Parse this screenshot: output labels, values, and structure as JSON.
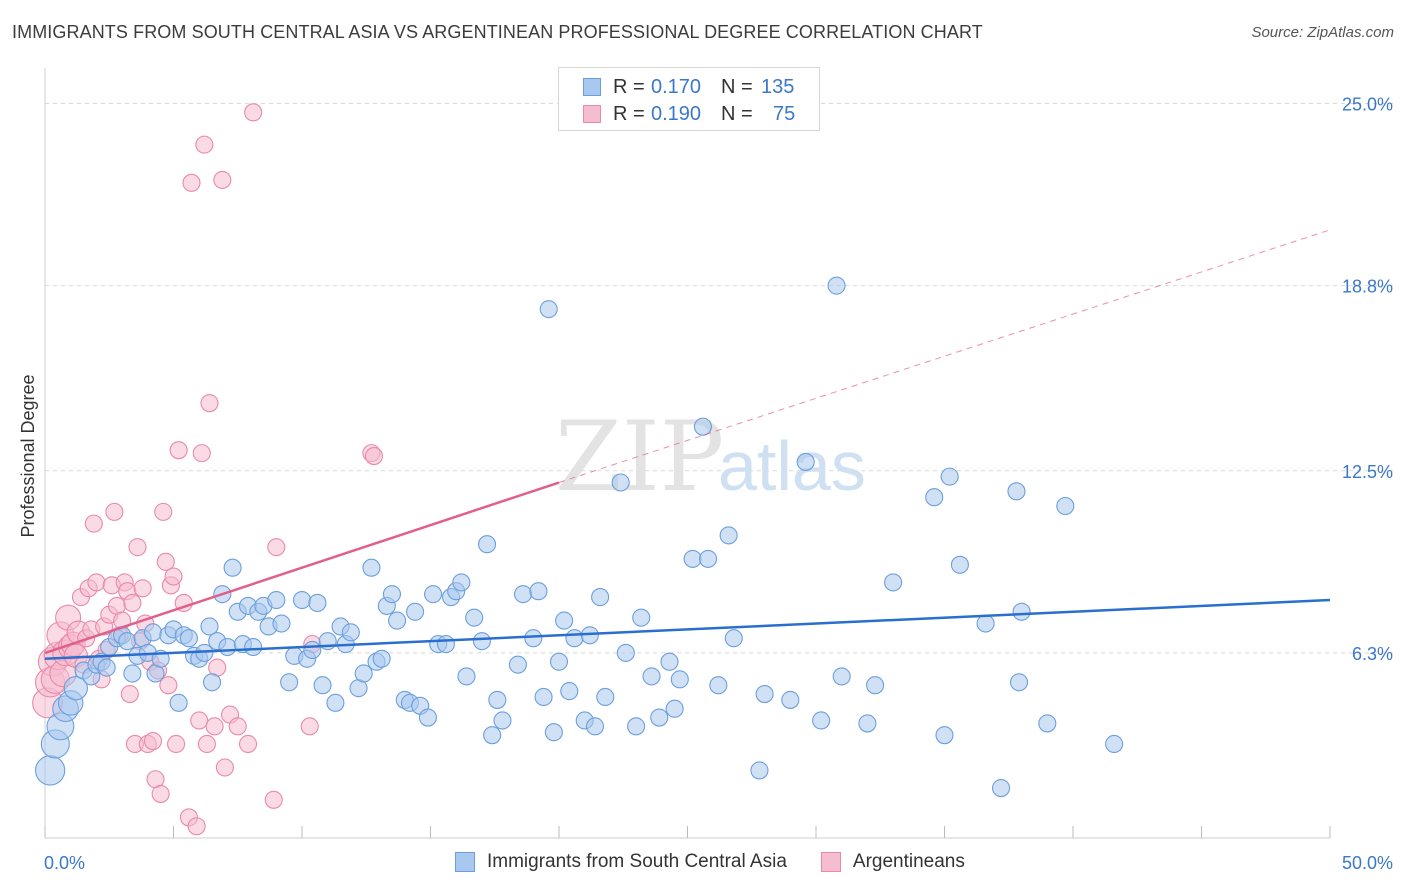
{
  "header": {
    "title": "IMMIGRANTS FROM SOUTH CENTRAL ASIA VS ARGENTINEAN PROFESSIONAL DEGREE CORRELATION CHART",
    "source": "Source: ZipAtlas.com"
  },
  "legend": {
    "rows": [
      {
        "r_label": "R =",
        "r_value": "0.170",
        "n_label": "N =",
        "n_value": "135"
      },
      {
        "r_label": "R =",
        "r_value": "0.190",
        "n_label": "N =",
        "n_value": "75"
      }
    ],
    "bottom": [
      "Immigrants from South Central Asia",
      "Argentineans"
    ]
  },
  "watermark": {
    "zip": "ZIP",
    "atlas": "atlas"
  },
  "colors": {
    "blue_fill": "#a9c8ef",
    "blue_stroke": "#6b9fdc",
    "blue_line": "#2a6fcf",
    "pink_fill": "#f6bcd0",
    "pink_stroke": "#e88aa8",
    "pink_line": "#e0608c",
    "axis_text": "#3a78c9",
    "grid": "#d9d9d9"
  },
  "chart_data": {
    "type": "scatter",
    "title": "IMMIGRANTS FROM SOUTH CENTRAL ASIA VS ARGENTINEAN PROFESSIONAL DEGREE CORRELATION CHART",
    "xlabel": "",
    "ylabel": "Professional Degree",
    "xlim": [
      0,
      50
    ],
    "ylim": [
      0,
      25.8
    ],
    "y_ticks": [
      6.3,
      12.5,
      18.8,
      25.0
    ],
    "y_tick_labels": [
      "6.3%",
      "12.5%",
      "18.8%",
      "25.0%"
    ],
    "x_tick_labels": [
      "0.0%",
      "50.0%"
    ],
    "grid": true,
    "series": [
      {
        "name": "Immigrants from South Central Asia",
        "R": 0.17,
        "N": 135,
        "trend": {
          "x0": 0,
          "y0": 6.1,
          "x1": 50,
          "y1": 8.1
        },
        "points": [
          [
            0.2,
            2.3
          ],
          [
            0.4,
            3.2
          ],
          [
            0.6,
            3.8
          ],
          [
            0.8,
            4.4
          ],
          [
            1.0,
            4.6
          ],
          [
            1.2,
            5.1
          ],
          [
            1.5,
            5.7
          ],
          [
            1.8,
            5.5
          ],
          [
            2.0,
            5.9
          ],
          [
            2.2,
            6.0
          ],
          [
            2.4,
            5.8
          ],
          [
            2.5,
            6.5
          ],
          [
            2.8,
            6.8
          ],
          [
            3.0,
            6.9
          ],
          [
            3.2,
            6.7
          ],
          [
            3.4,
            5.6
          ],
          [
            3.6,
            6.2
          ],
          [
            3.8,
            6.8
          ],
          [
            4.0,
            6.3
          ],
          [
            4.2,
            7.0
          ],
          [
            4.3,
            5.6
          ],
          [
            4.5,
            6.1
          ],
          [
            4.8,
            6.9
          ],
          [
            5.0,
            7.1
          ],
          [
            5.2,
            4.6
          ],
          [
            5.4,
            6.9
          ],
          [
            5.6,
            6.8
          ],
          [
            5.8,
            6.2
          ],
          [
            6.0,
            6.1
          ],
          [
            6.2,
            6.3
          ],
          [
            6.4,
            7.2
          ],
          [
            6.5,
            5.3
          ],
          [
            6.7,
            6.7
          ],
          [
            6.9,
            8.3
          ],
          [
            7.1,
            6.5
          ],
          [
            7.3,
            9.2
          ],
          [
            7.5,
            7.7
          ],
          [
            7.7,
            6.6
          ],
          [
            7.9,
            7.9
          ],
          [
            8.1,
            6.5
          ],
          [
            8.3,
            7.7
          ],
          [
            8.5,
            7.9
          ],
          [
            8.7,
            7.2
          ],
          [
            9.0,
            8.1
          ],
          [
            9.2,
            7.3
          ],
          [
            9.5,
            5.3
          ],
          [
            9.7,
            6.2
          ],
          [
            10.0,
            8.1
          ],
          [
            10.2,
            6.1
          ],
          [
            10.4,
            6.4
          ],
          [
            10.6,
            8.0
          ],
          [
            10.8,
            5.2
          ],
          [
            11.0,
            6.7
          ],
          [
            11.3,
            4.6
          ],
          [
            11.5,
            7.2
          ],
          [
            11.7,
            6.6
          ],
          [
            11.9,
            7.0
          ],
          [
            12.2,
            5.1
          ],
          [
            12.4,
            5.6
          ],
          [
            12.7,
            9.2
          ],
          [
            12.9,
            6.0
          ],
          [
            13.1,
            6.1
          ],
          [
            13.3,
            7.9
          ],
          [
            13.5,
            8.3
          ],
          [
            13.7,
            7.4
          ],
          [
            14.0,
            4.7
          ],
          [
            14.2,
            4.6
          ],
          [
            14.4,
            7.7
          ],
          [
            14.6,
            4.5
          ],
          [
            14.9,
            4.1
          ],
          [
            15.1,
            8.3
          ],
          [
            15.3,
            6.6
          ],
          [
            15.6,
            6.6
          ],
          [
            15.8,
            8.2
          ],
          [
            16.0,
            8.4
          ],
          [
            16.2,
            8.7
          ],
          [
            16.4,
            5.5
          ],
          [
            16.7,
            7.5
          ],
          [
            17.0,
            6.7
          ],
          [
            17.2,
            10.0
          ],
          [
            17.4,
            3.5
          ],
          [
            17.6,
            4.7
          ],
          [
            17.8,
            4.0
          ],
          [
            18.4,
            5.9
          ],
          [
            18.6,
            8.3
          ],
          [
            19.0,
            6.8
          ],
          [
            19.2,
            8.4
          ],
          [
            19.4,
            4.8
          ],
          [
            19.6,
            18.0
          ],
          [
            19.8,
            3.6
          ],
          [
            20.0,
            6.0
          ],
          [
            20.2,
            7.4
          ],
          [
            20.4,
            5.0
          ],
          [
            20.6,
            6.8
          ],
          [
            21.0,
            4.0
          ],
          [
            21.2,
            6.9
          ],
          [
            21.4,
            3.8
          ],
          [
            21.6,
            8.2
          ],
          [
            21.8,
            4.8
          ],
          [
            22.4,
            12.1
          ],
          [
            22.6,
            6.3
          ],
          [
            23.0,
            3.8
          ],
          [
            23.2,
            7.5
          ],
          [
            23.6,
            5.5
          ],
          [
            23.9,
            4.1
          ],
          [
            24.3,
            6.0
          ],
          [
            24.5,
            4.4
          ],
          [
            24.7,
            5.4
          ],
          [
            25.2,
            9.5
          ],
          [
            25.6,
            14.0
          ],
          [
            25.8,
            9.5
          ],
          [
            26.2,
            5.2
          ],
          [
            26.6,
            10.3
          ],
          [
            26.8,
            6.8
          ],
          [
            27.8,
            2.3
          ],
          [
            28.0,
            4.9
          ],
          [
            29.0,
            4.7
          ],
          [
            29.6,
            12.8
          ],
          [
            30.2,
            4.0
          ],
          [
            30.8,
            18.8
          ],
          [
            31.0,
            5.5
          ],
          [
            32.0,
            3.9
          ],
          [
            32.3,
            5.2
          ],
          [
            33.0,
            8.7
          ],
          [
            34.6,
            11.6
          ],
          [
            35.0,
            3.5
          ],
          [
            35.2,
            12.3
          ],
          [
            35.6,
            9.3
          ],
          [
            36.6,
            7.3
          ],
          [
            37.2,
            1.7
          ],
          [
            37.8,
            11.8
          ],
          [
            37.9,
            5.3
          ],
          [
            38.0,
            7.7
          ],
          [
            39.0,
            3.9
          ],
          [
            39.7,
            11.3
          ],
          [
            41.6,
            3.2
          ]
        ]
      },
      {
        "name": "Argentineans",
        "R": 0.19,
        "N": 75,
        "trend": {
          "x0": 0,
          "y0": 6.3,
          "x1": 20,
          "y1": 12.1,
          "dash_to_x": 50,
          "dash_to_y": 20.7
        },
        "points": [
          [
            0.1,
            4.6
          ],
          [
            0.2,
            5.3
          ],
          [
            0.3,
            6.0
          ],
          [
            0.4,
            5.4
          ],
          [
            0.5,
            6.2
          ],
          [
            0.6,
            6.9
          ],
          [
            0.7,
            5.6
          ],
          [
            0.8,
            6.3
          ],
          [
            0.9,
            7.5
          ],
          [
            1.0,
            6.5
          ],
          [
            1.1,
            6.6
          ],
          [
            1.2,
            6.2
          ],
          [
            1.3,
            7.0
          ],
          [
            1.4,
            8.2
          ],
          [
            1.5,
            5.9
          ],
          [
            1.6,
            6.8
          ],
          [
            1.7,
            8.5
          ],
          [
            1.8,
            7.1
          ],
          [
            1.9,
            10.7
          ],
          [
            2.0,
            8.7
          ],
          [
            2.1,
            6.1
          ],
          [
            2.2,
            5.4
          ],
          [
            2.3,
            7.2
          ],
          [
            2.4,
            6.4
          ],
          [
            2.5,
            7.6
          ],
          [
            2.6,
            8.6
          ],
          [
            2.7,
            11.1
          ],
          [
            2.8,
            7.9
          ],
          [
            2.9,
            6.9
          ],
          [
            3.0,
            7.4
          ],
          [
            3.1,
            8.7
          ],
          [
            3.2,
            8.4
          ],
          [
            3.3,
            4.9
          ],
          [
            3.4,
            8.0
          ],
          [
            3.5,
            3.2
          ],
          [
            3.6,
            9.9
          ],
          [
            3.7,
            6.7
          ],
          [
            3.8,
            8.5
          ],
          [
            3.9,
            7.3
          ],
          [
            4.0,
            3.2
          ],
          [
            4.1,
            6.0
          ],
          [
            4.2,
            3.3
          ],
          [
            4.3,
            2.0
          ],
          [
            4.4,
            5.7
          ],
          [
            4.5,
            1.5
          ],
          [
            4.6,
            11.1
          ],
          [
            4.7,
            9.4
          ],
          [
            4.8,
            5.2
          ],
          [
            4.9,
            8.6
          ],
          [
            5.0,
            8.9
          ],
          [
            5.1,
            3.2
          ],
          [
            5.2,
            13.2
          ],
          [
            5.4,
            8.0
          ],
          [
            5.6,
            0.7
          ],
          [
            5.7,
            22.3
          ],
          [
            5.9,
            0.4
          ],
          [
            6.0,
            4.0
          ],
          [
            6.1,
            13.1
          ],
          [
            6.2,
            23.6
          ],
          [
            6.3,
            3.2
          ],
          [
            6.4,
            14.8
          ],
          [
            6.6,
            3.8
          ],
          [
            6.7,
            5.8
          ],
          [
            6.9,
            22.4
          ],
          [
            7.0,
            2.4
          ],
          [
            7.2,
            4.2
          ],
          [
            7.5,
            3.8
          ],
          [
            7.9,
            3.2
          ],
          [
            8.1,
            24.7
          ],
          [
            8.9,
            1.3
          ],
          [
            9.0,
            9.9
          ],
          [
            10.3,
            3.8
          ],
          [
            10.4,
            6.6
          ],
          [
            12.7,
            13.1
          ],
          [
            12.8,
            13.0
          ]
        ]
      }
    ]
  }
}
